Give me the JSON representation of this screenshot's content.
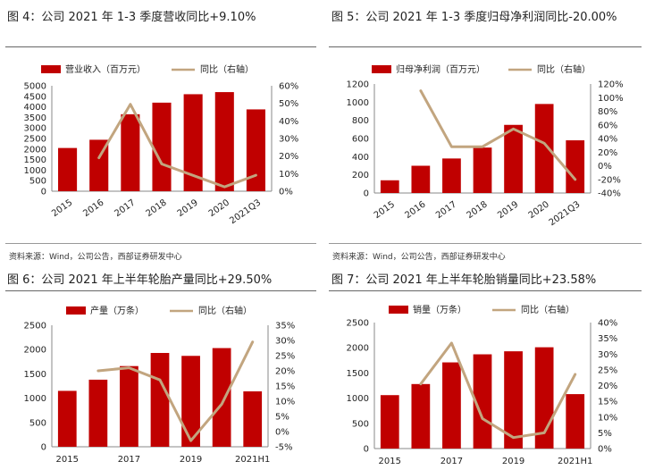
{
  "colors": {
    "bar": "#C00000",
    "line": "#C2A57F",
    "axis": "#888888",
    "text": "#222222"
  },
  "source_text": "资料来源：Wind，公司公告，西部证券研发中心",
  "chart_data": [
    {
      "type": "bar",
      "title": "图 4：公司 2021 年 1-3 季度营收同比+9.10%",
      "categories": [
        "2015",
        "2016",
        "2017",
        "2018",
        "2019",
        "2020",
        "2021Q3"
      ],
      "series": [
        {
          "name": "营业收入（百万元）",
          "kind": "bar",
          "axis": "left",
          "values": [
            2050,
            2440,
            3650,
            4200,
            4600,
            4700,
            3880
          ]
        },
        {
          "name": "同比（右轴）",
          "kind": "line",
          "axis": "right",
          "values": [
            null,
            19.0,
            49.5,
            15.5,
            9.0,
            2.5,
            9.1
          ]
        }
      ],
      "ylim": [
        0,
        5000
      ],
      "yticks": [
        0,
        500,
        1000,
        1500,
        2000,
        2500,
        3000,
        3500,
        4000,
        4500,
        5000
      ],
      "y2lim": [
        0,
        60
      ],
      "y2ticks": [
        0,
        10,
        20,
        30,
        40,
        50,
        60
      ],
      "y2format": "pct0",
      "xlabel_rotate": true,
      "legend": "top"
    },
    {
      "type": "bar",
      "title": "图 5：公司 2021 年 1-3 季度归母净利润同比-20.00%",
      "categories": [
        "2015",
        "2016",
        "2017",
        "2018",
        "2019",
        "2020",
        "2021Q3"
      ],
      "series": [
        {
          "name": "归母净利润（百万元）",
          "kind": "bar",
          "axis": "left",
          "values": [
            140,
            300,
            380,
            500,
            750,
            980,
            580
          ]
        },
        {
          "name": "同比（右轴）",
          "kind": "line",
          "axis": "right",
          "values": [
            null,
            110,
            28,
            28,
            54,
            33,
            -20
          ]
        }
      ],
      "ylim": [
        0,
        1200
      ],
      "yticks": [
        0,
        200,
        400,
        600,
        800,
        1000,
        1200
      ],
      "y2lim": [
        -40,
        120
      ],
      "y2ticks": [
        -40,
        -20,
        0,
        20,
        40,
        60,
        80,
        100,
        120
      ],
      "y2format": "pct0",
      "xlabel_rotate": true,
      "legend": "top"
    },
    {
      "type": "bar",
      "title": "图 6：公司 2021 年上半年轮胎产量同比+29.50%",
      "categories": [
        "2015",
        "2016",
        "2017",
        "2018",
        "2019",
        "2020",
        "2021H1"
      ],
      "xlabels_shown": [
        "2015",
        "",
        "2017",
        "",
        "2019",
        "",
        "2021H1"
      ],
      "series": [
        {
          "name": "产量（万条）",
          "kind": "bar",
          "axis": "left",
          "values": [
            1150,
            1380,
            1660,
            1930,
            1870,
            2030,
            1140
          ]
        },
        {
          "name": "同比（右轴）",
          "kind": "line",
          "axis": "right",
          "values": [
            null,
            20.0,
            21.0,
            17.0,
            -3.0,
            9.0,
            29.5
          ]
        }
      ],
      "ylim": [
        0,
        2500
      ],
      "yticks": [
        0,
        500,
        1000,
        1500,
        2000,
        2500
      ],
      "y2lim": [
        -5,
        35
      ],
      "y2ticks": [
        -5,
        0,
        5,
        10,
        15,
        20,
        25,
        30,
        35
      ],
      "y2format": "pct0",
      "xlabel_rotate": false,
      "legend": "top"
    },
    {
      "type": "bar",
      "title": "图 7：公司 2021 年上半年轮胎销量同比+23.58%",
      "categories": [
        "2015",
        "2016",
        "2017",
        "2018",
        "2019",
        "2020",
        "2021H1"
      ],
      "xlabels_shown": [
        "2015",
        "",
        "2017",
        "",
        "2019",
        "",
        "2021H1"
      ],
      "series": [
        {
          "name": "销量（万条）",
          "kind": "bar",
          "axis": "left",
          "values": [
            1060,
            1280,
            1710,
            1870,
            1930,
            2010,
            1080
          ]
        },
        {
          "name": "同比（右轴）",
          "kind": "line",
          "axis": "right",
          "values": [
            null,
            20.5,
            33.5,
            9.5,
            3.5,
            5.0,
            23.58
          ]
        }
      ],
      "ylim": [
        0,
        2500
      ],
      "yticks": [
        0,
        500,
        1000,
        1500,
        2000,
        2500
      ],
      "y2lim": [
        0,
        40
      ],
      "y2ticks": [
        0,
        5,
        10,
        15,
        20,
        25,
        30,
        35,
        40
      ],
      "y2format": "pct0",
      "xlabel_rotate": false,
      "legend": "top"
    }
  ]
}
